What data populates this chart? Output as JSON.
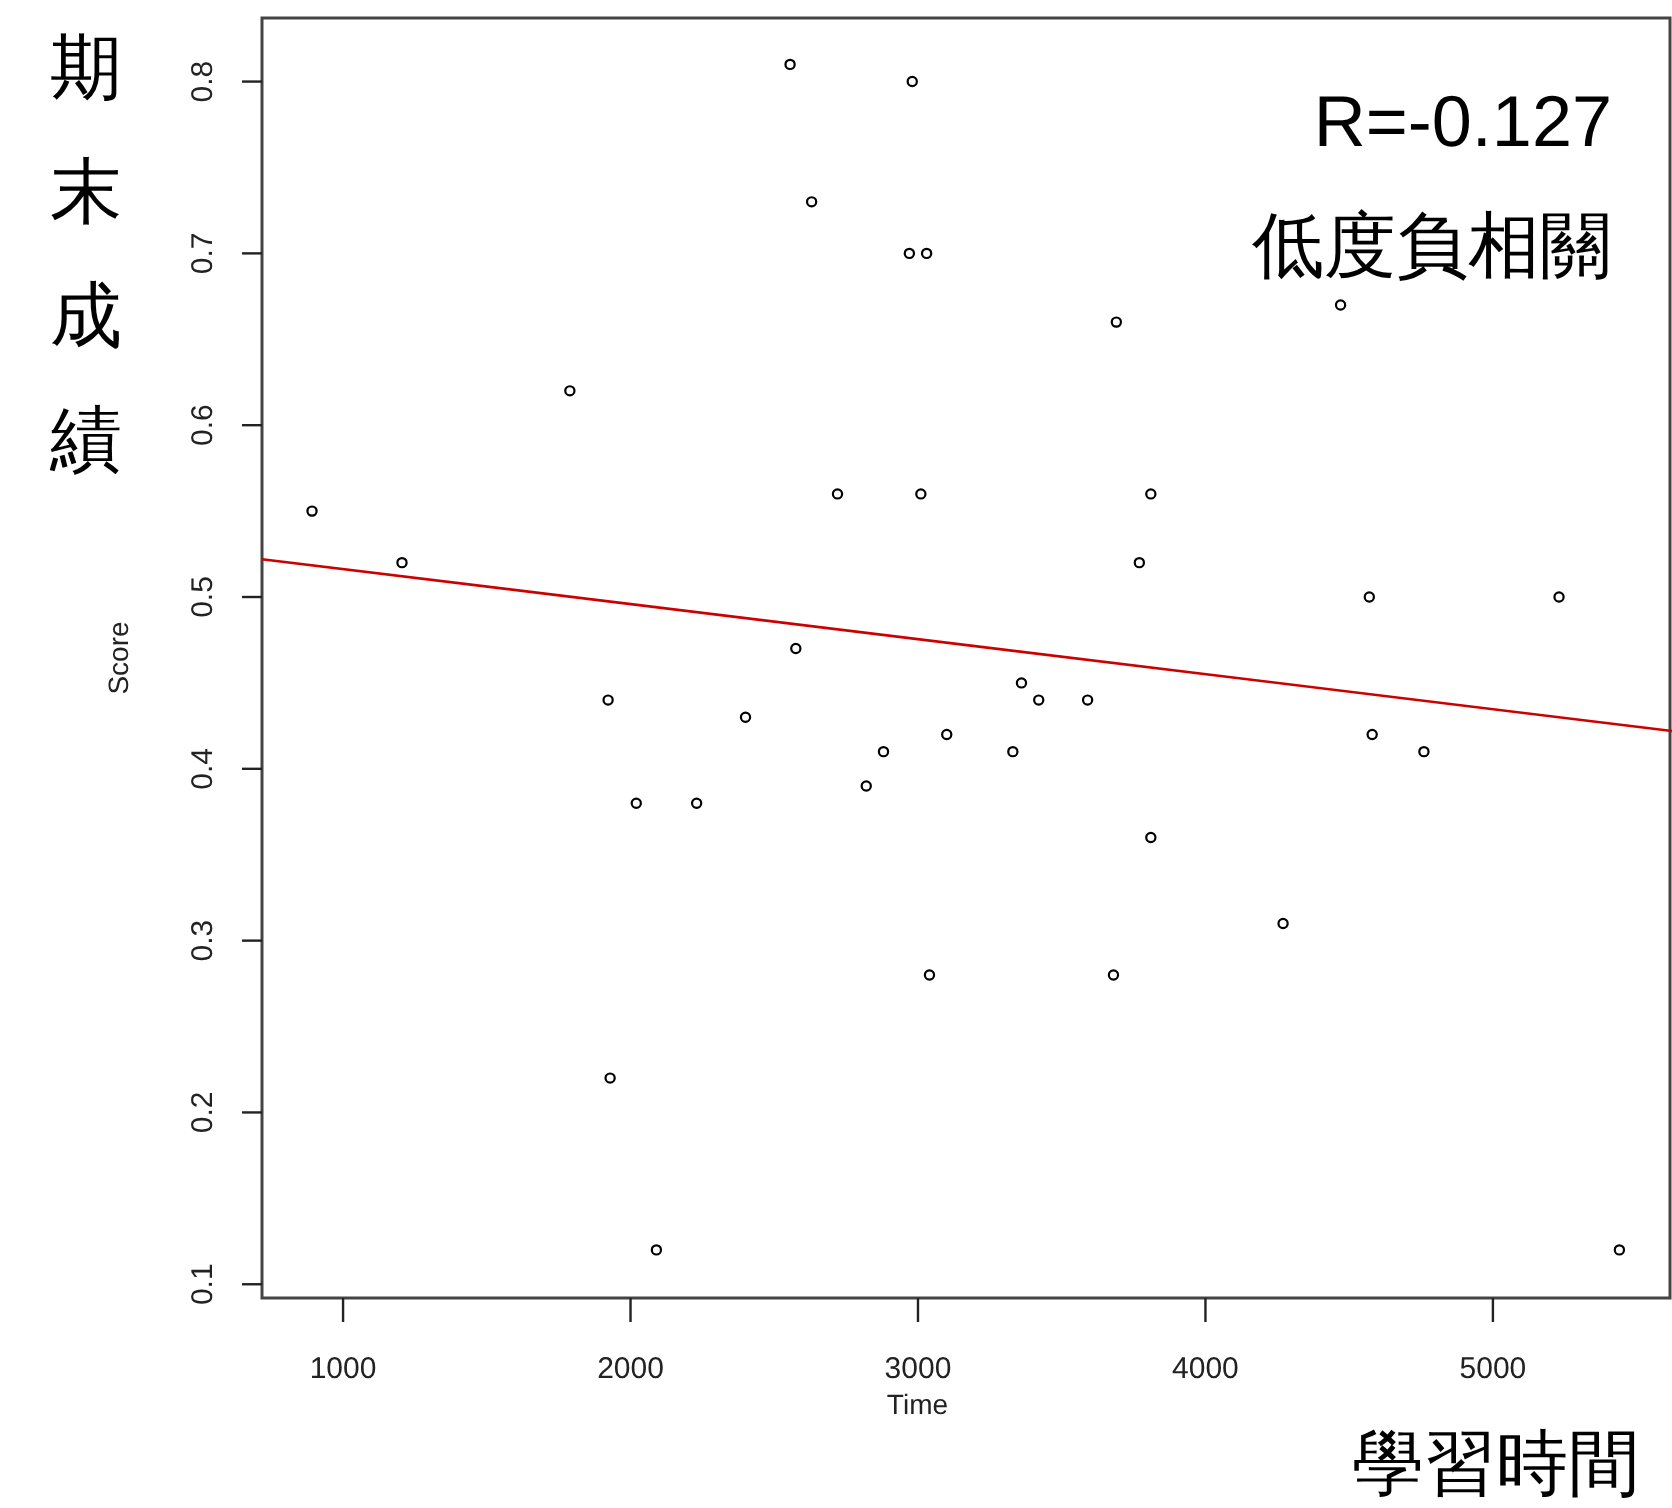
{
  "chart_data": {
    "type": "scatter",
    "xlabel": "Time",
    "ylabel": "Score",
    "xlim": [
      718,
      5623
    ],
    "ylim": [
      0.092,
      0.837
    ],
    "xticks": [
      1000,
      2000,
      3000,
      4000,
      5000
    ],
    "yticks": [
      0.1,
      0.2,
      0.3,
      0.4,
      0.5,
      0.6,
      0.7,
      0.8
    ],
    "grid": false,
    "annotations": [
      "期末成績",
      "學習時間",
      "R=-0.127",
      "低度負相關"
    ],
    "series": [
      {
        "marker": "circle",
        "color": "#000000",
        "x": [
          892,
          1205,
          1789,
          1922,
          1929,
          2020,
          2090,
          2230,
          2400,
          2575,
          2555,
          2630,
          2720,
          2820,
          2880,
          2980,
          2970,
          3030,
          3010,
          3040,
          3100,
          3330,
          3360,
          3420,
          3590,
          3680,
          3690,
          3770,
          3810,
          3810,
          4270,
          4470,
          4570,
          4580,
          4760,
          5230,
          5440
        ],
        "values": [
          0.55,
          0.52,
          0.62,
          0.44,
          0.22,
          0.38,
          0.12,
          0.38,
          0.43,
          0.47,
          0.81,
          0.73,
          0.56,
          0.39,
          0.41,
          0.8,
          0.7,
          0.7,
          0.56,
          0.28,
          0.42,
          0.41,
          0.45,
          0.44,
          0.44,
          0.28,
          0.66,
          0.52,
          0.56,
          0.36,
          0.31,
          0.67,
          0.5,
          0.42,
          0.41,
          0.5,
          0.12
        ]
      },
      {
        "type": "line",
        "marker": "none",
        "color": "#cc0000",
        "x": [
          718,
          5623
        ],
        "values": [
          0.522,
          0.422
        ]
      }
    ]
  }
}
